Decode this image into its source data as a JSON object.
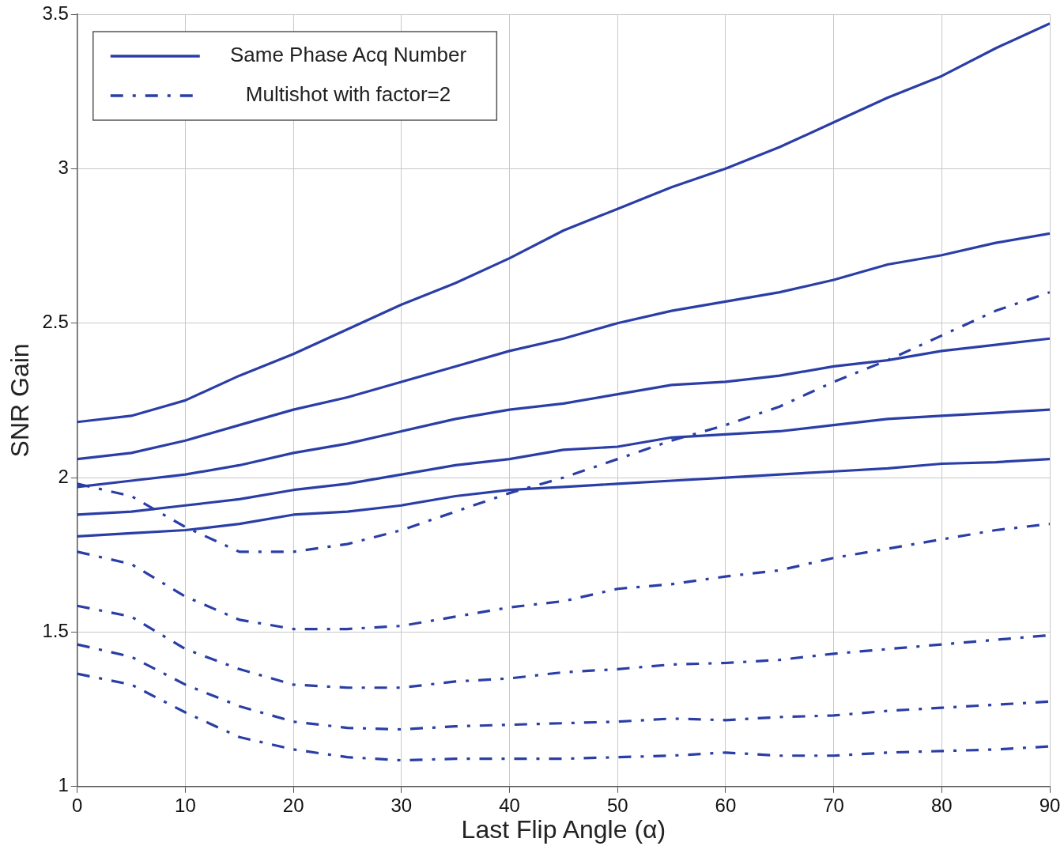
{
  "chart_data": {
    "type": "line",
    "xlabel": "Last Flip Angle (α)",
    "ylabel": "SNR Gain",
    "x": [
      0,
      5,
      10,
      15,
      20,
      25,
      30,
      35,
      40,
      45,
      50,
      55,
      60,
      65,
      70,
      75,
      80,
      85,
      90
    ],
    "xlim": [
      0,
      90
    ],
    "xticks": [
      0,
      10,
      20,
      30,
      40,
      50,
      60,
      70,
      80,
      90
    ],
    "ylim": [
      1,
      3.5
    ],
    "yticks": [
      1,
      1.5,
      2,
      2.5,
      3,
      3.5
    ],
    "grid": true,
    "legend": "top left",
    "marker": "none",
    "series": [
      {
        "name": "Same Phase Acq Number",
        "color": "#2a3ea6",
        "line_style": "solid",
        "values": [
          2.18,
          2.2,
          2.25,
          2.33,
          2.4,
          2.48,
          2.56,
          2.63,
          2.71,
          2.8,
          2.87,
          2.94,
          3.0,
          3.07,
          3.15,
          3.23,
          3.3,
          3.39,
          3.47
        ]
      },
      {
        "color": "#2a3ea6",
        "line_style": "solid",
        "values": [
          2.06,
          2.08,
          2.12,
          2.17,
          2.22,
          2.26,
          2.31,
          2.36,
          2.41,
          2.45,
          2.5,
          2.54,
          2.57,
          2.6,
          2.64,
          2.69,
          2.72,
          2.76,
          2.79
        ]
      },
      {
        "color": "#2a3ea6",
        "line_style": "solid",
        "values": [
          1.97,
          1.99,
          2.01,
          2.04,
          2.08,
          2.11,
          2.15,
          2.19,
          2.22,
          2.24,
          2.27,
          2.3,
          2.31,
          2.33,
          2.36,
          2.38,
          2.41,
          2.43,
          2.45
        ]
      },
      {
        "color": "#2a3ea6",
        "line_style": "solid",
        "values": [
          1.88,
          1.89,
          1.91,
          1.93,
          1.96,
          1.98,
          2.01,
          2.04,
          2.06,
          2.09,
          2.1,
          2.13,
          2.14,
          2.15,
          2.17,
          2.19,
          2.2,
          2.21,
          2.22
        ]
      },
      {
        "color": "#2a3ea6",
        "line_style": "solid",
        "values": [
          1.81,
          1.82,
          1.83,
          1.85,
          1.88,
          1.89,
          1.91,
          1.94,
          1.96,
          1.97,
          1.98,
          1.99,
          2.0,
          2.01,
          2.02,
          2.03,
          2.045,
          2.05,
          2.06
        ]
      },
      {
        "name": "Multishot with factor=2",
        "color": "#2a3ea6",
        "line_style": "dashdot",
        "values": [
          1.98,
          1.94,
          1.84,
          1.76,
          1.76,
          1.785,
          1.83,
          1.89,
          1.95,
          2.0,
          2.06,
          2.12,
          2.17,
          2.23,
          2.31,
          2.38,
          2.46,
          2.54,
          2.6
        ]
      },
      {
        "color": "#2a3ea6",
        "line_style": "dashdot",
        "values": [
          1.76,
          1.72,
          1.615,
          1.54,
          1.51,
          1.51,
          1.52,
          1.55,
          1.58,
          1.6,
          1.64,
          1.655,
          1.68,
          1.7,
          1.74,
          1.77,
          1.8,
          1.83,
          1.85
        ]
      },
      {
        "color": "#2a3ea6",
        "line_style": "dashdot",
        "values": [
          1.585,
          1.55,
          1.445,
          1.38,
          1.33,
          1.32,
          1.32,
          1.34,
          1.35,
          1.37,
          1.38,
          1.395,
          1.4,
          1.41,
          1.43,
          1.445,
          1.46,
          1.475,
          1.49
        ]
      },
      {
        "color": "#2a3ea6",
        "line_style": "dashdot",
        "values": [
          1.46,
          1.42,
          1.33,
          1.26,
          1.21,
          1.19,
          1.185,
          1.195,
          1.2,
          1.205,
          1.21,
          1.22,
          1.215,
          1.225,
          1.23,
          1.245,
          1.255,
          1.265,
          1.275
        ]
      },
      {
        "color": "#2a3ea6",
        "line_style": "dashdot",
        "values": [
          1.365,
          1.33,
          1.24,
          1.16,
          1.12,
          1.095,
          1.085,
          1.09,
          1.09,
          1.09,
          1.095,
          1.1,
          1.11,
          1.1,
          1.1,
          1.11,
          1.115,
          1.12,
          1.13
        ]
      }
    ]
  }
}
